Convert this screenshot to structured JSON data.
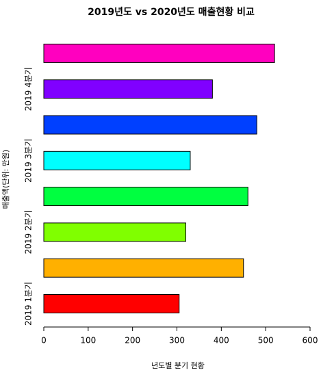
{
  "chart_data": {
    "type": "hbar",
    "title": "2019년도 vs 2020년도 매출현황 비교",
    "x_label": "년도별 분기 현황",
    "y_label": "매출액(단위: 만원)",
    "categories": [
      "2019 1분기",
      null,
      "2019 2분기",
      null,
      "2019 3분기",
      null,
      "2019 4분기",
      null
    ],
    "values": [
      305,
      450,
      320,
      460,
      330,
      480,
      380,
      520
    ],
    "colors": [
      "#FF0000",
      "#FFB000",
      "#80FF00",
      "#00FF40",
      "#00FFFF",
      "#0040FF",
      "#8000FF",
      "#FF00BF"
    ],
    "xlim": [
      0,
      600
    ],
    "xticks": [
      0,
      100,
      200,
      300,
      400,
      500,
      600
    ]
  }
}
